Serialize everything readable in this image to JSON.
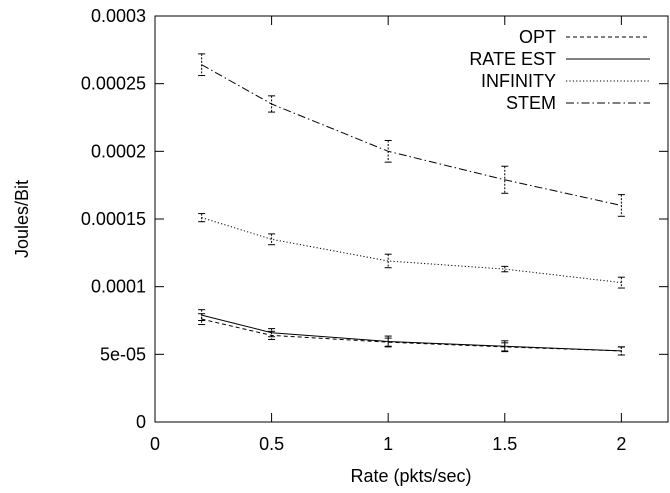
{
  "chart_data": {
    "type": "line",
    "xlabel": "Rate (pkts/sec)",
    "ylabel": "Joules/Bit",
    "xlim": [
      0,
      2.2
    ],
    "ylim": [
      0,
      0.0003
    ],
    "x_ticks": [
      0,
      0.5,
      1,
      1.5,
      2
    ],
    "x_tick_labels": [
      "0",
      "0.5",
      "1",
      "1.5",
      "2"
    ],
    "y_ticks": [
      0,
      5e-05,
      0.0001,
      0.00015,
      0.0002,
      0.00025,
      0.0003
    ],
    "y_tick_labels": [
      "0",
      "5e-05",
      "0.0001",
      "0.00015",
      "0.0002",
      "0.00025",
      "0.0003"
    ],
    "grid": false,
    "legend_position": "top-right",
    "x": [
      0.2,
      0.5,
      1,
      1.5,
      2
    ],
    "series": [
      {
        "name": "OPT",
        "style": "dashed",
        "values": [
          7.6e-05,
          6.4e-05,
          5.9e-05,
          5.55e-05,
          5.25e-05
        ],
        "err": [
          4e-06,
          3e-06,
          3e-06,
          3e-06,
          3e-06
        ]
      },
      {
        "name": "RATE EST",
        "style": "solid",
        "values": [
          7.9e-05,
          6.6e-05,
          5.95e-05,
          5.6e-05,
          5.25e-05
        ],
        "err": [
          4e-06,
          3e-06,
          4e-06,
          4e-06,
          3e-06
        ]
      },
      {
        "name": "INFINITY",
        "style": "dotted",
        "values": [
          0.000151,
          0.000135,
          0.000119,
          0.000113,
          0.000103
        ],
        "err": [
          3e-06,
          4e-06,
          5e-06,
          2e-06,
          4e-06
        ]
      },
      {
        "name": "STEM",
        "style": "dashdot",
        "values": [
          0.000264,
          0.000235,
          0.0002,
          0.000179,
          0.00016
        ],
        "err": [
          8e-06,
          6e-06,
          8e-06,
          1e-05,
          8e-06
        ]
      }
    ]
  }
}
